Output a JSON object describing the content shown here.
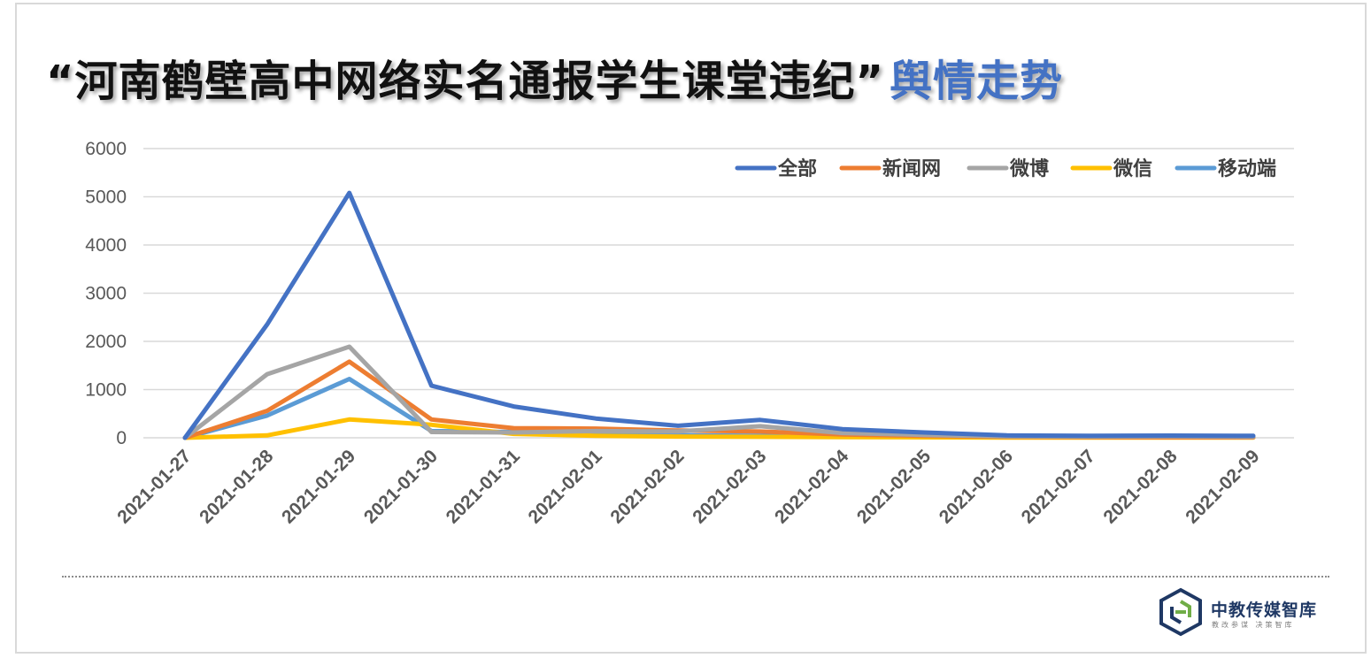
{
  "title": {
    "main": "“河南鹤壁高中网络实名通报学生课堂违纪”",
    "accent": "舆情走势",
    "accent_color": "#4472c4"
  },
  "chart_data": {
    "type": "line",
    "categories": [
      "2021-01-27",
      "2021-01-28",
      "2021-01-29",
      "2021-01-30",
      "2021-01-31",
      "2021-02-01",
      "2021-02-02",
      "2021-02-03",
      "2021-02-04",
      "2021-02-05",
      "2021-02-06",
      "2021-02-07",
      "2021-02-08",
      "2021-02-09"
    ],
    "ylim": [
      0,
      6000
    ],
    "yticks": [
      0,
      1000,
      2000,
      3000,
      4000,
      5000,
      6000
    ],
    "grid": true,
    "legend_position": "top-right",
    "series": [
      {
        "name": "全部",
        "color": "#4472c4",
        "values": [
          0,
          2350,
          5080,
          1080,
          650,
          400,
          250,
          370,
          180,
          110,
          50,
          40,
          45,
          40
        ]
      },
      {
        "name": "新闻网",
        "color": "#ed7d31",
        "values": [
          0,
          560,
          1580,
          380,
          200,
          190,
          150,
          130,
          70,
          40,
          20,
          15,
          10,
          10
        ]
      },
      {
        "name": "微博",
        "color": "#a5a5a5",
        "values": [
          0,
          1320,
          1890,
          120,
          110,
          140,
          130,
          240,
          100,
          60,
          30,
          25,
          30,
          20
        ]
      },
      {
        "name": "微信",
        "color": "#ffc000",
        "values": [
          0,
          50,
          380,
          270,
          80,
          40,
          25,
          20,
          15,
          10,
          5,
          5,
          5,
          5
        ]
      },
      {
        "name": "移动端",
        "color": "#5b9bd5",
        "values": [
          0,
          460,
          1220,
          140,
          120,
          60,
          50,
          40,
          30,
          20,
          10,
          10,
          10,
          10
        ]
      }
    ]
  },
  "logo": {
    "name": "中教传媒智库",
    "tagline": "教改参谋  决策智库"
  }
}
